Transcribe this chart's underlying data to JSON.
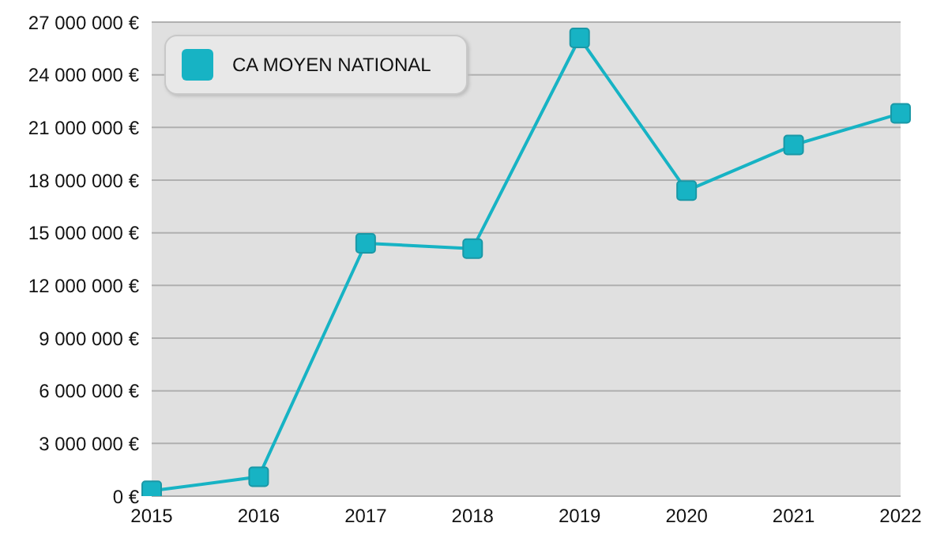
{
  "chart_data": {
    "type": "line",
    "categories": [
      "2015",
      "2016",
      "2017",
      "2018",
      "2019",
      "2020",
      "2021",
      "2022"
    ],
    "series": [
      {
        "name": "CA MOYEN NATIONAL",
        "color": "#17b3c4",
        "values": [
          300000,
          1100000,
          14400000,
          14100000,
          26100000,
          17400000,
          20000000,
          21800000
        ]
      }
    ],
    "ylim": [
      0,
      27000000
    ],
    "yticks": [
      {
        "value": 0,
        "label": "0 €"
      },
      {
        "value": 3000000,
        "label": "3 000 000 €"
      },
      {
        "value": 6000000,
        "label": "6 000 000 €"
      },
      {
        "value": 9000000,
        "label": "9 000 000 €"
      },
      {
        "value": 12000000,
        "label": "12 000 000 €"
      },
      {
        "value": 15000000,
        "label": "15 000 000 €"
      },
      {
        "value": 18000000,
        "label": "18 000 000 €"
      },
      {
        "value": 21000000,
        "label": "21 000 000 €"
      },
      {
        "value": 24000000,
        "label": "24 000 000 €"
      },
      {
        "value": 27000000,
        "label": "27 000 000 €"
      }
    ],
    "grid": "y",
    "legend": "top left",
    "marker": "square",
    "line_style": "solid"
  }
}
